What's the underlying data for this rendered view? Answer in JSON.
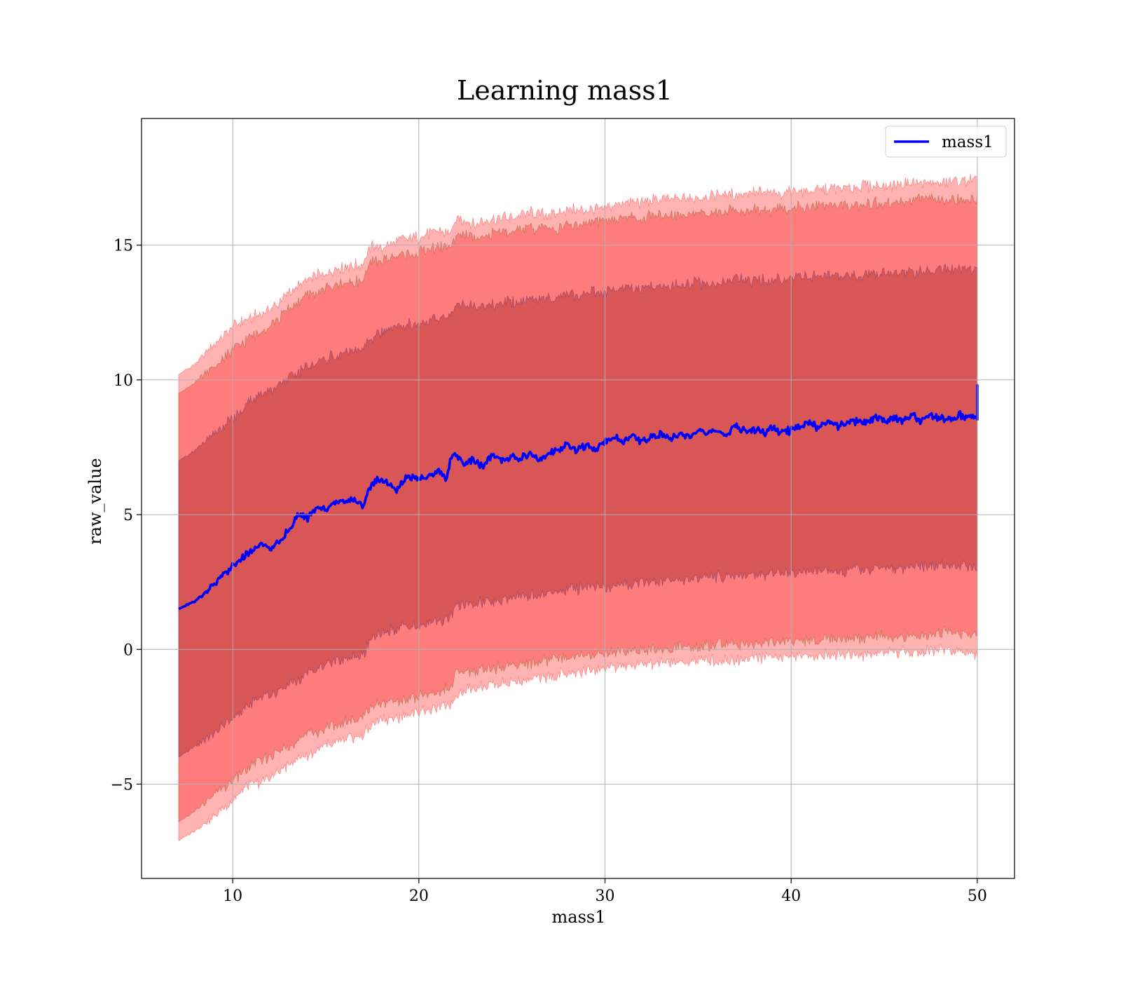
{
  "chart_data": {
    "type": "line",
    "title": "Learning mass1",
    "xlabel": "mass1",
    "ylabel": "raw_value",
    "xlim": [
      5.1,
      52.0
    ],
    "ylim": [
      -8.5,
      19.7
    ],
    "xticks": [
      10,
      20,
      30,
      40,
      50
    ],
    "yticks": [
      -5,
      0,
      5,
      10,
      15
    ],
    "xtick_labels": [
      "10",
      "20",
      "30",
      "40",
      "50"
    ],
    "ytick_labels": [
      "−5",
      "0",
      "5",
      "10",
      "15"
    ],
    "grid": true,
    "legend": {
      "placement": "top-right",
      "entries": [
        "mass1"
      ]
    },
    "colors": {
      "mean_line": "#0000ff",
      "band_outer": "#ff0000",
      "band_middle": "#ff0000",
      "band_inner": "#800000",
      "band_mid_shade": "#d08f6e",
      "band_inner_shade": "#a26f78"
    },
    "series": [
      {
        "name": "mass1",
        "role": "mean",
        "x": [
          7.1,
          8,
          9,
          9.8,
          10.2,
          11,
          11.5,
          12,
          12.5,
          13,
          13.5,
          14,
          14.5,
          15,
          15.5,
          16,
          16.5,
          17,
          17.3,
          17.8,
          18.3,
          18.8,
          19.3,
          20,
          20.5,
          21,
          21.5,
          21.8,
          22.5,
          23,
          23.5,
          24,
          24.5,
          25,
          25.5,
          26,
          26.5,
          27,
          27.5,
          28,
          28.5,
          29,
          29.5,
          30,
          30.5,
          31,
          31.5,
          32,
          32.5,
          33,
          33.5,
          34,
          34.5,
          35,
          35.5,
          36,
          36.5,
          37,
          37.5,
          38,
          38.5,
          39,
          39.5,
          40,
          40.5,
          41,
          41.5,
          42,
          42.5,
          43,
          43.5,
          44,
          44.5,
          45,
          45.5,
          46,
          46.5,
          47,
          47.5,
          48,
          48.5,
          49,
          49.5,
          49.8,
          50
        ],
        "values": [
          1.5,
          1.8,
          2.4,
          3.0,
          3.2,
          3.7,
          3.9,
          3.7,
          4.0,
          4.4,
          5.0,
          4.9,
          5.2,
          5.2,
          5.5,
          5.4,
          5.6,
          5.3,
          6.0,
          6.3,
          6.2,
          5.9,
          6.4,
          6.3,
          6.4,
          6.6,
          6.4,
          7.3,
          6.9,
          7.0,
          6.8,
          7.3,
          7.0,
          7.2,
          7.1,
          7.3,
          7.0,
          7.3,
          7.4,
          7.6,
          7.4,
          7.6,
          7.4,
          7.7,
          7.9,
          7.7,
          8.0,
          7.7,
          7.9,
          8.0,
          7.8,
          8.0,
          7.9,
          8.1,
          8.0,
          8.2,
          7.9,
          8.3,
          8.1,
          8.2,
          8.0,
          8.2,
          8.1,
          8.1,
          8.3,
          8.4,
          8.2,
          8.5,
          8.3,
          8.4,
          8.5,
          8.4,
          8.6,
          8.5,
          8.6,
          8.5,
          8.7,
          8.5,
          8.7,
          8.6,
          8.5,
          8.7,
          8.6,
          8.7,
          8.5
        ]
      },
      {
        "role": "band_outer",
        "x": [
          7.1,
          8,
          9,
          10,
          11,
          12,
          13,
          14,
          15,
          16,
          17,
          17.5,
          18,
          19,
          20,
          21,
          21.8,
          22,
          23,
          24,
          25,
          26,
          27,
          28,
          29,
          30,
          31,
          32,
          33,
          34,
          35,
          36,
          37,
          38,
          39,
          40,
          41,
          42,
          43,
          44,
          45,
          46,
          47,
          48,
          49,
          50
        ],
        "upper": [
          10.2,
          10.6,
          11.3,
          12.0,
          12.3,
          12.6,
          13.2,
          13.7,
          14.0,
          14.2,
          14.3,
          15.0,
          14.9,
          15.2,
          15.3,
          15.5,
          15.5,
          16.0,
          15.8,
          16.0,
          16.0,
          16.2,
          16.1,
          16.3,
          16.3,
          16.4,
          16.6,
          16.6,
          16.7,
          16.7,
          16.8,
          16.9,
          16.9,
          17.0,
          16.9,
          17.0,
          17.0,
          17.1,
          17.1,
          17.2,
          17.2,
          17.3,
          17.3,
          17.3,
          17.4,
          17.4
        ],
        "lower": [
          -7.1,
          -6.7,
          -6.2,
          -5.6,
          -5.0,
          -4.8,
          -4.3,
          -3.9,
          -3.6,
          -3.4,
          -3.2,
          -2.8,
          -2.6,
          -2.5,
          -2.3,
          -2.2,
          -2.0,
          -1.6,
          -1.4,
          -1.3,
          -1.2,
          -1.1,
          -1.0,
          -0.9,
          -0.8,
          -0.7,
          -0.6,
          -0.6,
          -0.5,
          -0.5,
          -0.4,
          -0.4,
          -0.4,
          -0.3,
          -0.3,
          -0.3,
          -0.2,
          -0.2,
          -0.2,
          -0.2,
          -0.1,
          -0.1,
          -0.1,
          0.0,
          0.0,
          -0.2
        ]
      },
      {
        "role": "band_middle",
        "x": [
          7.1,
          8,
          9,
          10,
          11,
          12,
          13,
          14,
          15,
          16,
          17,
          17.5,
          18,
          19,
          20,
          21,
          21.8,
          22,
          23,
          24,
          25,
          26,
          27,
          28,
          29,
          30,
          31,
          32,
          33,
          34,
          35,
          36,
          37,
          38,
          39,
          40,
          41,
          42,
          43,
          44,
          45,
          46,
          47,
          48,
          49,
          50
        ],
        "upper": [
          9.5,
          9.9,
          10.5,
          11.1,
          11.6,
          12.0,
          12.6,
          13.1,
          13.4,
          13.6,
          13.7,
          14.4,
          14.4,
          14.6,
          14.7,
          14.9,
          15.0,
          15.4,
          15.3,
          15.4,
          15.5,
          15.6,
          15.6,
          15.7,
          15.8,
          15.9,
          16.0,
          16.0,
          16.1,
          16.1,
          16.2,
          16.2,
          16.3,
          16.3,
          16.3,
          16.4,
          16.4,
          16.5,
          16.5,
          16.5,
          16.6,
          16.6,
          16.7,
          16.7,
          16.7,
          16.7
        ],
        "lower": [
          -6.4,
          -6.0,
          -5.4,
          -4.9,
          -4.3,
          -4.0,
          -3.6,
          -3.2,
          -2.9,
          -2.7,
          -2.5,
          -2.1,
          -2.0,
          -1.9,
          -1.7,
          -1.6,
          -1.4,
          -0.9,
          -0.8,
          -0.7,
          -0.6,
          -0.5,
          -0.4,
          -0.3,
          -0.2,
          -0.1,
          -0.1,
          0.0,
          0.0,
          0.1,
          0.1,
          0.2,
          0.2,
          0.2,
          0.3,
          0.3,
          0.3,
          0.4,
          0.4,
          0.4,
          0.5,
          0.5,
          0.5,
          0.6,
          0.6,
          0.5
        ]
      },
      {
        "role": "band_inner",
        "x": [
          7.1,
          8,
          9,
          10,
          11,
          12,
          13,
          14,
          15,
          16,
          17,
          17.5,
          18,
          19,
          20,
          21,
          21.8,
          22,
          23,
          24,
          25,
          26,
          27,
          28,
          29,
          30,
          31,
          32,
          33,
          34,
          35,
          36,
          37,
          38,
          39,
          40,
          41,
          42,
          43,
          44,
          45,
          46,
          47,
          48,
          49,
          50
        ],
        "upper": [
          7.0,
          7.4,
          8.0,
          8.6,
          9.3,
          9.6,
          10.0,
          10.5,
          10.8,
          11.0,
          11.1,
          11.6,
          11.8,
          12.0,
          12.1,
          12.3,
          12.4,
          12.8,
          12.7,
          12.8,
          12.9,
          13.0,
          13.0,
          13.1,
          13.2,
          13.3,
          13.4,
          13.4,
          13.5,
          13.5,
          13.6,
          13.6,
          13.7,
          13.7,
          13.7,
          13.8,
          13.8,
          13.9,
          13.9,
          13.9,
          14.0,
          14.0,
          14.0,
          14.1,
          14.1,
          14.0
        ],
        "lower": [
          -4.0,
          -3.6,
          -3.1,
          -2.6,
          -2.0,
          -1.7,
          -1.3,
          -0.9,
          -0.6,
          -0.4,
          -0.2,
          0.4,
          0.6,
          0.8,
          0.9,
          1.0,
          1.2,
          1.6,
          1.7,
          1.8,
          1.9,
          2.0,
          2.1,
          2.2,
          2.3,
          2.3,
          2.4,
          2.5,
          2.5,
          2.6,
          2.6,
          2.7,
          2.7,
          2.8,
          2.8,
          2.8,
          2.9,
          2.9,
          2.9,
          3.0,
          3.0,
          3.0,
          3.1,
          3.1,
          3.1,
          3.0
        ]
      }
    ]
  }
}
